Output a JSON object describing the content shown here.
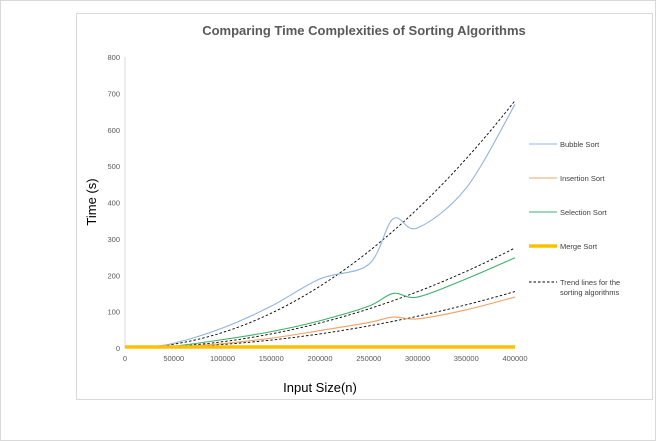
{
  "chart_data": {
    "type": "line",
    "title": "Comparing Time Complexities of Sorting Algorithms",
    "xlabel": "Input Size(n)",
    "ylabel": "Time (s)",
    "xlim": [
      0,
      400000
    ],
    "ylim": [
      0,
      800
    ],
    "x_ticks": [
      0,
      50000,
      100000,
      150000,
      200000,
      250000,
      300000,
      350000,
      400000
    ],
    "y_ticks": [
      0,
      100,
      200,
      300,
      400,
      500,
      600,
      700,
      800
    ],
    "grid": false,
    "legend_position": "right",
    "x": [
      0,
      20000,
      50000,
      100000,
      150000,
      200000,
      250000,
      275000,
      300000,
      350000,
      400000
    ],
    "series": [
      {
        "name": "Bubble Sort",
        "color": "#8fb4df",
        "values": [
          0,
          2,
          13,
          55,
          115,
          190,
          230,
          355,
          330,
          440,
          670
        ]
      },
      {
        "name": "Insertion Sort",
        "color": "#f0a165",
        "values": [
          0,
          1,
          3,
          12,
          27,
          48,
          70,
          85,
          80,
          105,
          140
        ]
      },
      {
        "name": "Selection Sort",
        "color": "#3fb06a",
        "values": [
          0,
          1,
          5,
          23,
          45,
          75,
          115,
          150,
          140,
          190,
          248
        ]
      },
      {
        "name": "Merge Sort",
        "color": "#ffc000",
        "values": [
          0,
          0,
          0,
          0,
          0,
          0,
          0,
          0,
          0,
          0,
          0
        ]
      }
    ],
    "trendlines": {
      "name": "Trend lines for the sorting algorithms",
      "color": "#000000",
      "coefficients": [
        4.25e-09,
        1.72e-09,
        9.7e-10
      ]
    }
  }
}
